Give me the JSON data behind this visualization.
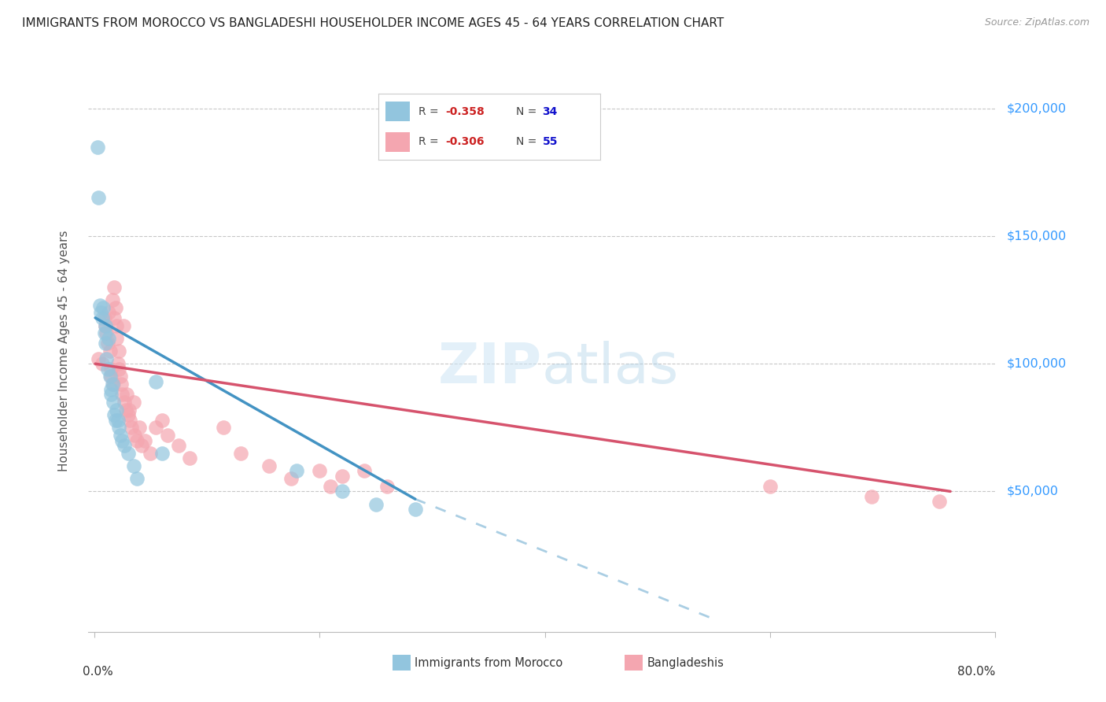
{
  "title": "IMMIGRANTS FROM MOROCCO VS BANGLADESHI HOUSEHOLDER INCOME AGES 45 - 64 YEARS CORRELATION CHART",
  "source": "Source: ZipAtlas.com",
  "ylabel": "Householder Income Ages 45 - 64 years",
  "ytick_labels": [
    "$50,000",
    "$100,000",
    "$150,000",
    "$200,000"
  ],
  "ytick_values": [
    50000,
    100000,
    150000,
    200000
  ],
  "xlim": [
    -0.005,
    0.8
  ],
  "ylim": [
    -5000,
    215000
  ],
  "watermark_part1": "ZIP",
  "watermark_part2": "atlas",
  "morocco_R": -0.358,
  "morocco_N": 34,
  "bangladesh_R": -0.306,
  "bangladesh_N": 55,
  "morocco_color": "#92c5de",
  "bangladesh_color": "#f4a6b0",
  "morocco_line_color": "#4393c3",
  "bangladesh_line_color": "#d6536d",
  "morocco_line_x0": 0.001,
  "morocco_line_y0": 118000,
  "morocco_line_x1": 0.285,
  "morocco_line_y1": 47000,
  "morocco_line_ext_x1": 0.55,
  "morocco_line_ext_y1": 0,
  "bangladesh_line_x0": 0.001,
  "bangladesh_line_y0": 100000,
  "bangladesh_line_x1": 0.76,
  "bangladesh_line_y1": 50000,
  "morocco_x": [
    0.003,
    0.004,
    0.005,
    0.006,
    0.007,
    0.008,
    0.009,
    0.01,
    0.01,
    0.011,
    0.012,
    0.013,
    0.014,
    0.015,
    0.015,
    0.016,
    0.017,
    0.018,
    0.019,
    0.02,
    0.021,
    0.022,
    0.023,
    0.025,
    0.027,
    0.03,
    0.035,
    0.038,
    0.055,
    0.06,
    0.18,
    0.22,
    0.25,
    0.285
  ],
  "morocco_y": [
    185000,
    165000,
    123000,
    120000,
    118000,
    122000,
    112000,
    115000,
    108000,
    102000,
    98000,
    110000,
    95000,
    90000,
    88000,
    92000,
    85000,
    80000,
    78000,
    82000,
    78000,
    75000,
    72000,
    70000,
    68000,
    65000,
    60000,
    55000,
    93000,
    65000,
    58000,
    50000,
    45000,
    43000
  ],
  "bangladesh_x": [
    0.004,
    0.007,
    0.009,
    0.01,
    0.011,
    0.012,
    0.013,
    0.014,
    0.015,
    0.015,
    0.016,
    0.017,
    0.018,
    0.018,
    0.019,
    0.02,
    0.02,
    0.021,
    0.022,
    0.022,
    0.023,
    0.024,
    0.025,
    0.026,
    0.027,
    0.028,
    0.029,
    0.03,
    0.031,
    0.032,
    0.033,
    0.035,
    0.036,
    0.038,
    0.04,
    0.042,
    0.045,
    0.05,
    0.055,
    0.06,
    0.065,
    0.075,
    0.085,
    0.115,
    0.13,
    0.155,
    0.175,
    0.2,
    0.21,
    0.22,
    0.24,
    0.26,
    0.6,
    0.69,
    0.75
  ],
  "bangladesh_y": [
    102000,
    100000,
    118000,
    115000,
    112000,
    108000,
    120000,
    105000,
    98000,
    95000,
    125000,
    92000,
    130000,
    118000,
    122000,
    115000,
    110000,
    100000,
    105000,
    98000,
    95000,
    92000,
    88000,
    115000,
    85000,
    82000,
    88000,
    80000,
    82000,
    78000,
    75000,
    85000,
    72000,
    70000,
    75000,
    68000,
    70000,
    65000,
    75000,
    78000,
    72000,
    68000,
    63000,
    75000,
    65000,
    60000,
    55000,
    58000,
    52000,
    56000,
    58000,
    52000,
    52000,
    48000,
    46000
  ]
}
